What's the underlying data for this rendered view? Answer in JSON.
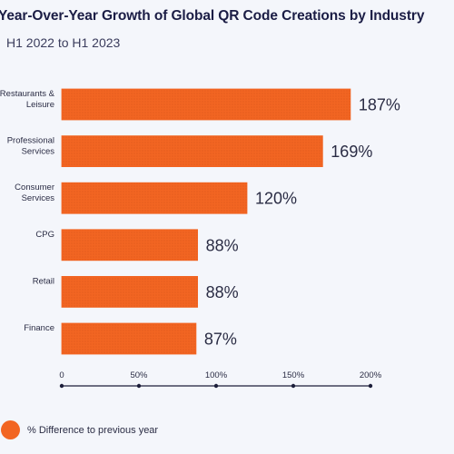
{
  "chart_data": {
    "type": "bar",
    "orientation": "horizontal",
    "title": "Year-Over-Year Growth of Global QR Code Creations by Industry",
    "subtitle": "H1 2022 to H1 2023",
    "categories": [
      [
        "Restaurants &",
        "Leisure"
      ],
      [
        "Professional",
        "Services"
      ],
      [
        "Consumer",
        "Services"
      ],
      [
        "CPG"
      ],
      [
        "Retail"
      ],
      [
        "Finance"
      ]
    ],
    "values": [
      187,
      169,
      120,
      88,
      88,
      87
    ],
    "value_labels": [
      "187%",
      "169%",
      "120%",
      "88%",
      "88%",
      "87%"
    ],
    "xlim": [
      0,
      200
    ],
    "xticks": [
      0,
      50,
      100,
      150,
      200
    ],
    "xtick_labels": [
      "0",
      "50%",
      "100%",
      "150%",
      "200%"
    ],
    "legend": {
      "label": "% Difference to previous year",
      "position": "bottom-left"
    },
    "bar_color": "#f26522",
    "grid": false
  }
}
